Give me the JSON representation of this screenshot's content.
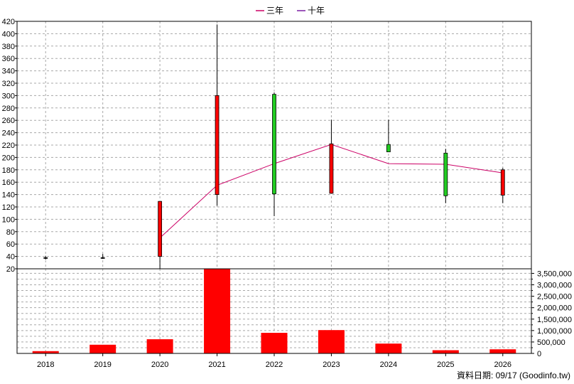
{
  "chart_data": {
    "type": "candlestick",
    "categories": [
      "2018",
      "2019",
      "2020",
      "2021",
      "2022",
      "2023",
      "2024",
      "2025",
      "2026"
    ],
    "legend": [
      {
        "name": "三年",
        "color": "#cc0066"
      },
      {
        "name": "十年",
        "color": "#7b1fa2"
      }
    ],
    "legend_position": "top-center",
    "price_axis": {
      "ylim": [
        20,
        420
      ],
      "ticks": [
        20,
        40,
        60,
        80,
        100,
        120,
        140,
        160,
        180,
        200,
        220,
        240,
        260,
        280,
        300,
        320,
        340,
        360,
        380,
        400,
        420
      ]
    },
    "candles": [
      {
        "year": "2018",
        "open": 38,
        "close": 38,
        "high": 41,
        "low": 35,
        "color": "#000000"
      },
      {
        "year": "2019",
        "open": 38,
        "close": 38,
        "high": 44,
        "low": 36,
        "color": "#000000"
      },
      {
        "year": "2020",
        "open": 40,
        "close": 129,
        "high": 129,
        "low": 20,
        "color": "#ff0000"
      },
      {
        "year": "2021",
        "open": 140,
        "close": 300,
        "high": 415,
        "low": 122,
        "color": "#ff0000"
      },
      {
        "year": "2022",
        "open": 302,
        "close": 141,
        "high": 305,
        "low": 105,
        "color": "#22cc22"
      },
      {
        "year": "2023",
        "open": 142,
        "close": 222,
        "high": 261,
        "low": 142,
        "color": "#ff0000"
      },
      {
        "year": "2024",
        "open": 221,
        "close": 209,
        "high": 261,
        "low": 209,
        "color": "#22cc22"
      },
      {
        "year": "2025",
        "open": 207,
        "close": 138,
        "high": 214,
        "low": 126,
        "color": "#22cc22"
      },
      {
        "year": "2026",
        "open": 139,
        "close": 180,
        "high": 183,
        "low": 126,
        "color": "#ff0000"
      }
    ],
    "ma_three_year": {
      "name": "三年",
      "x": [
        "2020",
        "2021",
        "2022",
        "2023",
        "2024",
        "2025",
        "2026"
      ],
      "values": [
        70,
        155,
        190,
        221,
        190,
        189,
        175
      ]
    },
    "volume_axis": {
      "ylim": [
        0,
        3700000
      ],
      "ticks": [
        0,
        500000,
        1000000,
        1500000,
        2000000,
        2500000,
        3000000,
        3500000
      ],
      "tick_labels": [
        "0",
        "500,000",
        "1,000,000",
        "1,500,000",
        "2,000,000",
        "2,500,000",
        "3,000,000",
        "3,500,000"
      ]
    },
    "volumes": [
      100000,
      380000,
      620000,
      3700000,
      900000,
      1020000,
      430000,
      140000,
      180000
    ],
    "volume_color": "#ff0000",
    "grid": true
  },
  "footer": {
    "date_label": "資料日期: 09/17",
    "source": "(Goodinfo.tw)"
  }
}
